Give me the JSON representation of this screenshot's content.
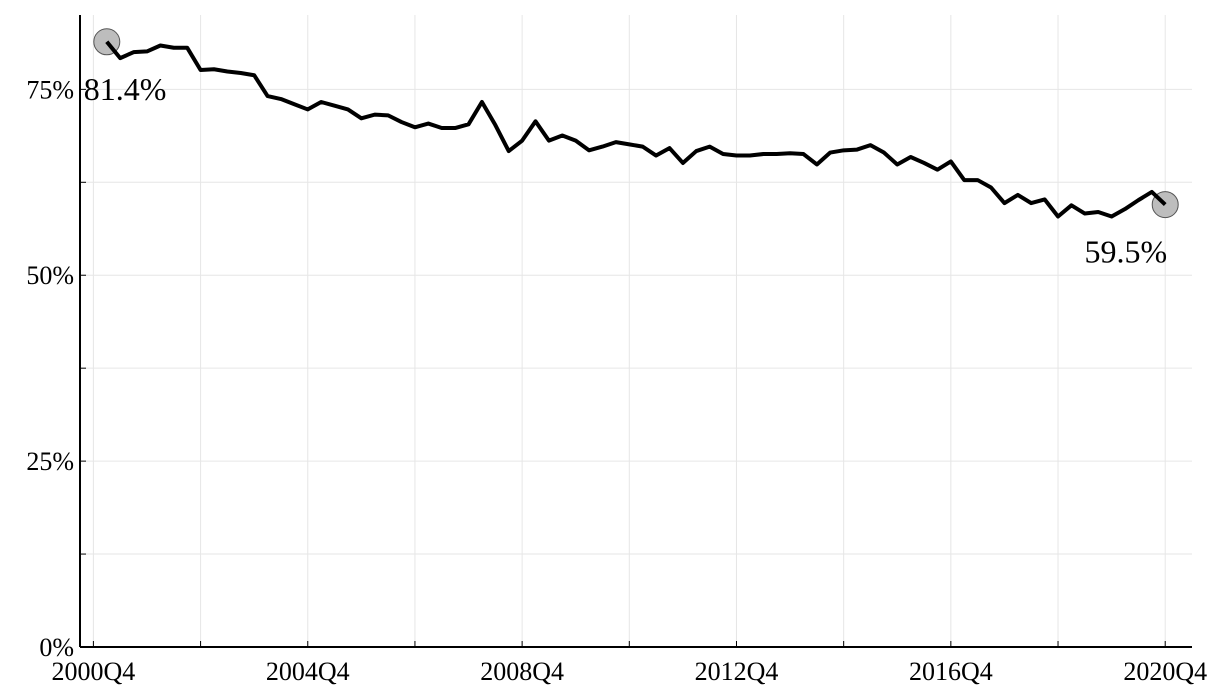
{
  "chart_data": {
    "type": "line",
    "x": [
      "2001Q1",
      "2001Q2",
      "2001Q3",
      "2001Q4",
      "2002Q1",
      "2002Q2",
      "2002Q3",
      "2002Q4",
      "2003Q1",
      "2003Q2",
      "2003Q3",
      "2003Q4",
      "2004Q1",
      "2004Q2",
      "2004Q3",
      "2004Q4",
      "2005Q1",
      "2005Q2",
      "2005Q3",
      "2005Q4",
      "2006Q1",
      "2006Q2",
      "2006Q3",
      "2006Q4",
      "2007Q1",
      "2007Q2",
      "2007Q3",
      "2007Q4",
      "2008Q1",
      "2008Q2",
      "2008Q3",
      "2008Q4",
      "2009Q1",
      "2009Q2",
      "2009Q3",
      "2009Q4",
      "2010Q1",
      "2010Q2",
      "2010Q3",
      "2010Q4",
      "2011Q1",
      "2011Q2",
      "2011Q3",
      "2011Q4",
      "2012Q1",
      "2012Q2",
      "2012Q3",
      "2012Q4",
      "2013Q1",
      "2013Q2",
      "2013Q3",
      "2013Q4",
      "2014Q1",
      "2014Q2",
      "2014Q3",
      "2014Q4",
      "2015Q1",
      "2015Q2",
      "2015Q3",
      "2015Q4",
      "2016Q1",
      "2016Q2",
      "2016Q3",
      "2016Q4",
      "2017Q1",
      "2017Q2",
      "2017Q3",
      "2017Q4",
      "2018Q1",
      "2018Q2",
      "2018Q3",
      "2018Q4",
      "2019Q1",
      "2019Q2",
      "2019Q3",
      "2019Q4",
      "2020Q1",
      "2020Q2",
      "2020Q3",
      "2020Q4"
    ],
    "series": [
      {
        "color": "#000000",
        "values": [
          81.4,
          79.2,
          80.0,
          80.1,
          80.9,
          80.6,
          80.6,
          77.6,
          77.7,
          77.4,
          77.2,
          76.9,
          74.1,
          73.7,
          73.0,
          72.3,
          73.3,
          72.8,
          72.3,
          71.1,
          71.6,
          71.5,
          70.6,
          69.9,
          70.4,
          69.8,
          69.8,
          70.3,
          73.3,
          70.2,
          66.7,
          68.1,
          70.7,
          68.1,
          68.8,
          68.1,
          66.8,
          67.3,
          67.9,
          67.6,
          67.3,
          66.1,
          67.1,
          65.1,
          66.7,
          67.3,
          66.3,
          66.1,
          66.1,
          66.3,
          66.3,
          66.4,
          66.3,
          64.9,
          66.5,
          66.8,
          66.9,
          67.5,
          66.5,
          64.9,
          65.9,
          65.1,
          64.2,
          65.3,
          62.8,
          62.8,
          61.8,
          59.7,
          60.8,
          59.7,
          60.2,
          57.9,
          59.4,
          58.3,
          58.5,
          57.9,
          58.9,
          60.1,
          61.2,
          59.5
        ]
      }
    ],
    "annotations": [
      {
        "text": "81.4%",
        "x": "2001Q1",
        "y": 81.4
      },
      {
        "text": "59.5%",
        "x": "2020Q4",
        "y": 59.5
      }
    ],
    "xlim": [
      "2000Q3",
      "2021Q2"
    ],
    "xticks": [
      "2000Q4",
      "2004Q4",
      "2008Q4",
      "2012Q4",
      "2016Q4",
      "2020Q4"
    ],
    "minor_xticks": [
      "2002Q4",
      "2006Q4",
      "2010Q4",
      "2014Q4",
      "2018Q4"
    ],
    "ylim": [
      0,
      85
    ],
    "yticks": [
      {
        "value": 0,
        "label": "0%"
      },
      {
        "value": 25,
        "label": "25%"
      },
      {
        "value": 50,
        "label": "50%"
      },
      {
        "value": 75,
        "label": "75%"
      }
    ],
    "minor_yticks": [
      12.5,
      37.5,
      62.5
    ],
    "grid": true
  }
}
